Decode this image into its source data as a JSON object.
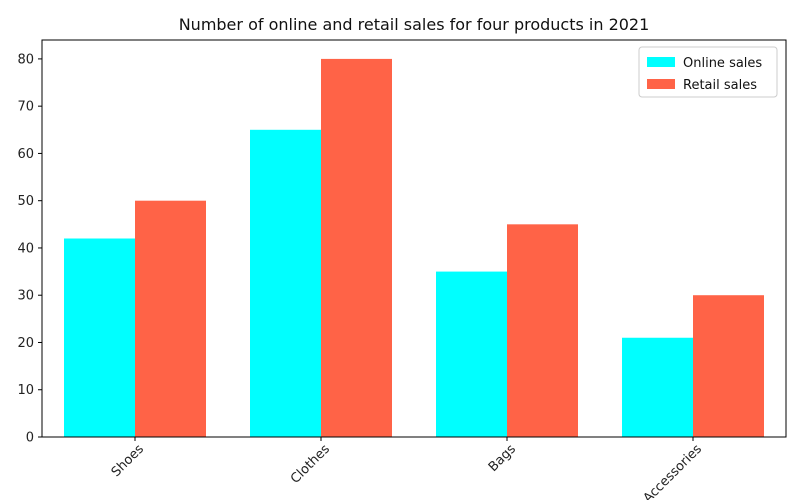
{
  "chart_data": {
    "type": "bar",
    "title": "Number of online and retail sales for four products in 2021",
    "xlabel": "",
    "ylabel": "",
    "categories": [
      "Shoes",
      "Clothes",
      "Bags",
      "Accessories"
    ],
    "series": [
      {
        "name": "Online sales",
        "values": [
          42,
          65,
          35,
          21
        ],
        "color": "#00ffff"
      },
      {
        "name": "Retail sales",
        "values": [
          50,
          80,
          45,
          30
        ],
        "color": "#ff6347"
      }
    ],
    "ylim": [
      0,
      84
    ],
    "yticks": [
      0,
      10,
      20,
      30,
      40,
      50,
      60,
      70,
      80
    ],
    "grid": false,
    "legend_position": "top-right",
    "xtick_rotation_deg": 45
  }
}
